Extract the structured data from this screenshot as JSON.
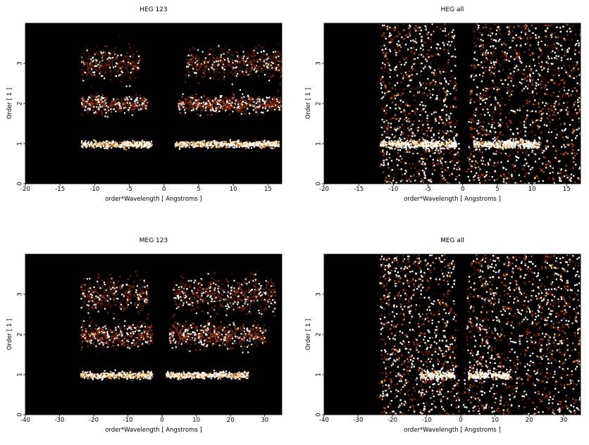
{
  "colors": {
    "background": "#000000",
    "colormap": [
      "#000000",
      "#3a0a00",
      "#7a2200",
      "#b84a08",
      "#e08a20",
      "#ffd070",
      "#ffffff"
    ],
    "axis": "#000000"
  },
  "chart_data": [
    {
      "type": "heatmap",
      "title": "HEG 123",
      "xlabel": "order*Wavelength [ Angstroms ]",
      "ylabel": "Order [ 1 ]",
      "xlim": [
        -20,
        17
      ],
      "ylim": [
        0,
        4
      ],
      "xticks": [
        -20,
        -15,
        -10,
        -5,
        0,
        5,
        10,
        15
      ],
      "yticks": [
        0,
        1,
        2,
        3
      ],
      "features": [
        {
          "kind": "band",
          "order": 1,
          "x_ranges": [
            [
              -12,
              -1.8
            ],
            [
              1.5,
              16.5
            ]
          ],
          "intensity": 0.9,
          "spread": 0.04
        },
        {
          "kind": "band",
          "order": 2,
          "x_ranges": [
            [
              -12,
              -2.5
            ],
            [
              2,
              17
            ]
          ],
          "intensity": 0.45,
          "spread": 0.05
        },
        {
          "kind": "band",
          "order": 3,
          "x_ranges": [
            [
              -12,
              -3.5
            ],
            [
              3,
              17
            ]
          ],
          "intensity": 0.35,
          "spread": 0.06
        }
      ]
    },
    {
      "type": "heatmap",
      "title": "HEG all",
      "xlabel": "order*Wavelength [ Angstroms ]",
      "ylabel": "Order [ 1 ]",
      "xlim": [
        -20,
        17
      ],
      "ylim": [
        0,
        4
      ],
      "xticks": [
        -20,
        -15,
        -10,
        -5,
        0,
        5,
        10,
        15
      ],
      "yticks": [
        0,
        1,
        2,
        3
      ],
      "features": [
        {
          "kind": "wedge-fill",
          "x_range": [
            -12,
            17
          ],
          "noise": 0.4
        },
        {
          "kind": "band",
          "order": 1,
          "x_ranges": [
            [
              -12,
              -1
            ],
            [
              1.5,
              11
            ]
          ],
          "intensity": 1.0,
          "spread": 0.05
        }
      ]
    },
    {
      "type": "heatmap",
      "title": "MEG 123",
      "xlabel": "order*Wavelength [ Angstroms ]",
      "ylabel": "Order [ 1 ]",
      "xlim": [
        -40,
        35
      ],
      "ylim": [
        0,
        4
      ],
      "xticks": [
        -40,
        -30,
        -20,
        -10,
        0,
        10,
        20,
        30
      ],
      "yticks": [
        0,
        1,
        2,
        3
      ],
      "features": [
        {
          "kind": "band",
          "order": 1,
          "x_ranges": [
            [
              -24,
              -3
            ],
            [
              1,
              25
            ]
          ],
          "intensity": 0.9,
          "spread": 0.04
        },
        {
          "kind": "band",
          "order": 2,
          "x_ranges": [
            [
              -24,
              -3
            ],
            [
              2,
              30
            ]
          ],
          "intensity": 0.45,
          "spread": 0.07
        },
        {
          "kind": "band",
          "order": 3,
          "x_ranges": [
            [
              -24,
              -4
            ],
            [
              3,
              33
            ]
          ],
          "intensity": 0.4,
          "spread": 0.07
        }
      ]
    },
    {
      "type": "heatmap",
      "title": "MEG all",
      "xlabel": "order*Wavelength [ Angstroms ]",
      "ylabel": "Order [ 1 ]",
      "xlim": [
        -40,
        35
      ],
      "ylim": [
        0,
        4
      ],
      "xticks": [
        -40,
        -30,
        -20,
        -10,
        0,
        10,
        20,
        30
      ],
      "yticks": [
        0,
        1,
        2,
        3
      ],
      "features": [
        {
          "kind": "wedge-fill",
          "x_range": [
            -24,
            35
          ],
          "noise": 0.4
        },
        {
          "kind": "band",
          "order": 1,
          "x_ranges": [
            [
              -12,
              -2
            ],
            [
              2,
              14
            ]
          ],
          "intensity": 1.0,
          "spread": 0.05
        }
      ]
    }
  ]
}
